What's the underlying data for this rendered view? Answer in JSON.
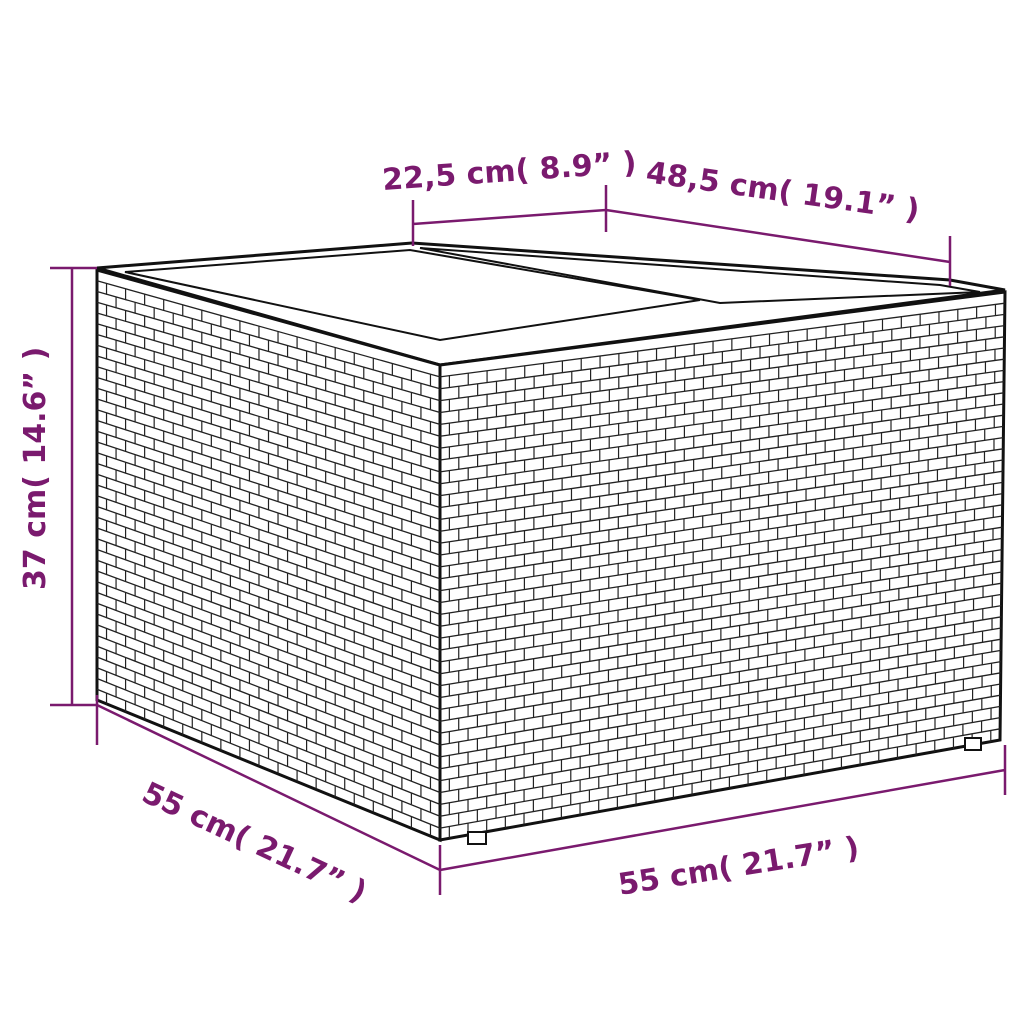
{
  "dimensions": {
    "top_depth": "22,5 cm( 8.9” )",
    "top_width": "48,5 cm( 19.1” )",
    "height": "37 cm( 14.6” )",
    "side_depth": "55 cm( 21.7” )",
    "front_width": "55 cm( 21.7” )"
  },
  "colors": {
    "dimension": "#7a1a6e",
    "product_outline": "#1a1a1a"
  }
}
